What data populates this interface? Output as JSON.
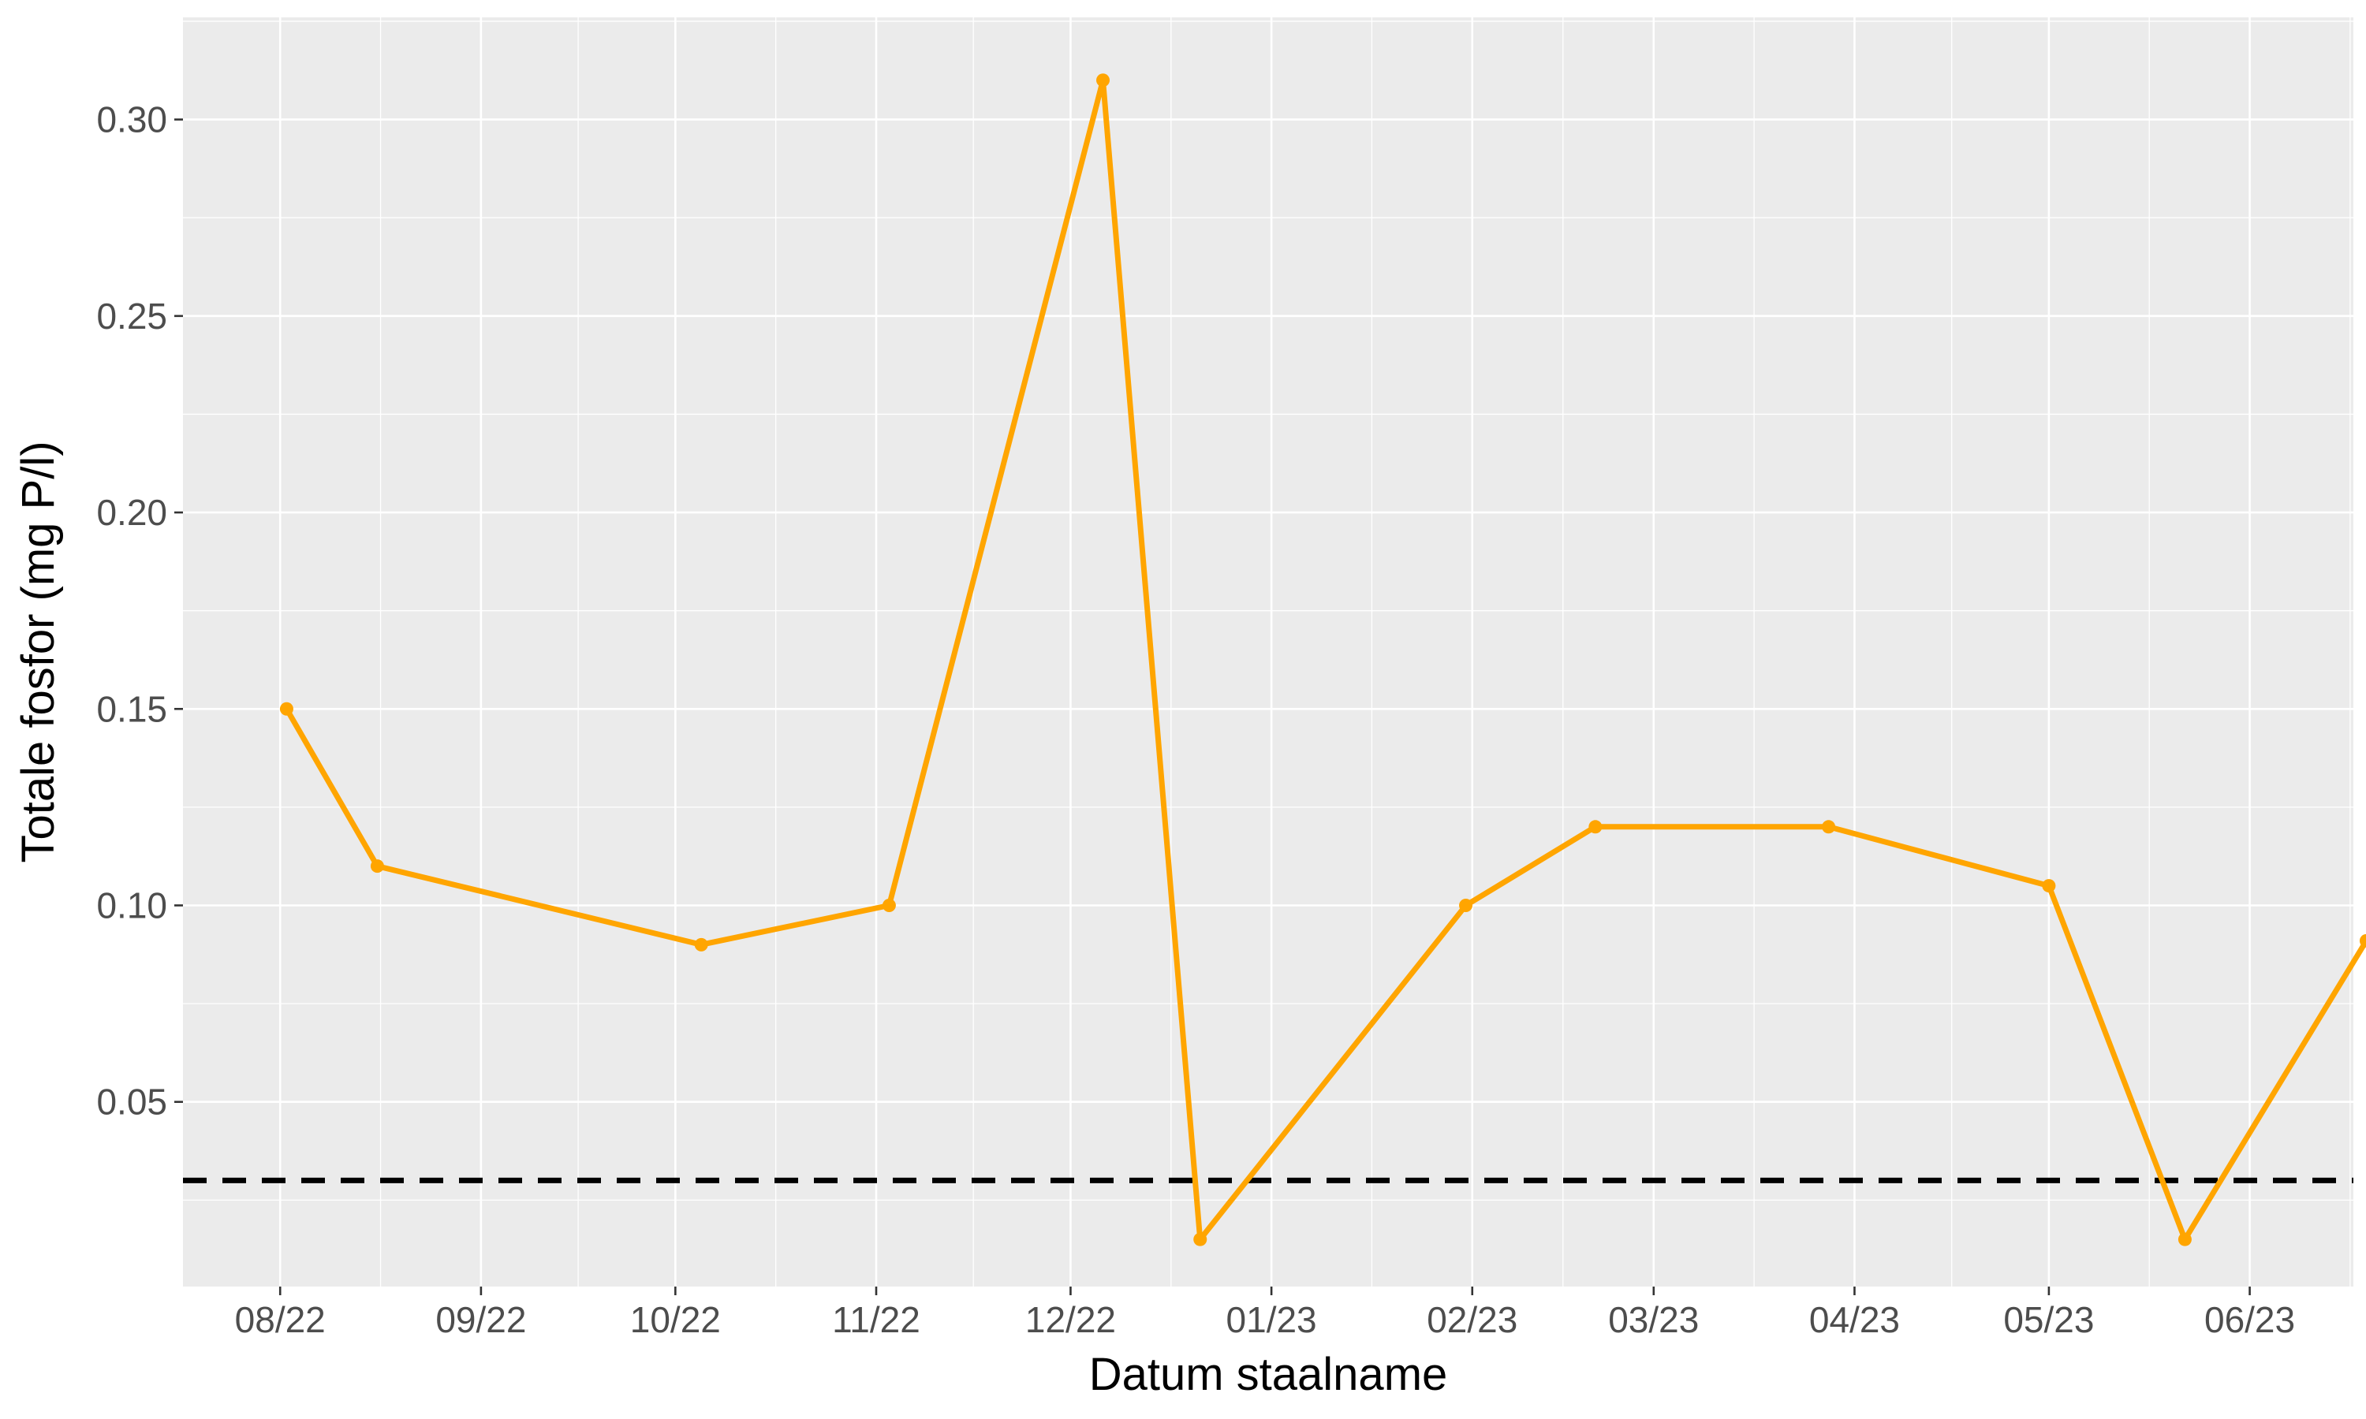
{
  "chart_data": {
    "type": "line",
    "title": "",
    "xlabel": "Datum staalname",
    "ylabel": "Totale fosfor (mg P/l)",
    "x_tick_labels": [
      "08/22",
      "09/22",
      "10/22",
      "11/22",
      "12/22",
      "01/23",
      "02/23",
      "03/23",
      "04/23",
      "05/23",
      "06/23"
    ],
    "x_ticks": [
      "2022-08-01",
      "2022-09-01",
      "2022-10-01",
      "2022-11-01",
      "2022-12-01",
      "2023-01-01",
      "2023-02-01",
      "2023-03-01",
      "2023-04-01",
      "2023-05-01",
      "2023-06-01"
    ],
    "xlim": [
      "2022-07-17",
      "2023-06-17"
    ],
    "y_ticks": [
      0.05,
      0.1,
      0.15,
      0.2,
      0.25,
      0.3
    ],
    "y_tick_labels": [
      "0.05",
      "0.10",
      "0.15",
      "0.20",
      "0.25",
      "0.30"
    ],
    "ylim": [
      0.003,
      0.326
    ],
    "grid": true,
    "legend": "none",
    "series": [
      {
        "color": "#FFA500",
        "points": [
          {
            "x": "2022-08-02",
            "y": 0.15
          },
          {
            "x": "2022-08-16",
            "y": 0.11
          },
          {
            "x": "2022-10-05",
            "y": 0.09
          },
          {
            "x": "2022-11-03",
            "y": 0.1
          },
          {
            "x": "2022-12-06",
            "y": 0.31
          },
          {
            "x": "2022-12-21",
            "y": 0.015
          },
          {
            "x": "2023-01-31",
            "y": 0.1
          },
          {
            "x": "2023-02-20",
            "y": 0.12
          },
          {
            "x": "2023-03-28",
            "y": 0.12
          },
          {
            "x": "2023-05-01",
            "y": 0.105
          },
          {
            "x": "2023-05-22",
            "y": 0.015
          },
          {
            "x": "2023-06-19",
            "y": 0.091
          }
        ]
      }
    ],
    "reference_line": {
      "y": 0.03,
      "style": "dashed",
      "color": "#000000"
    }
  }
}
